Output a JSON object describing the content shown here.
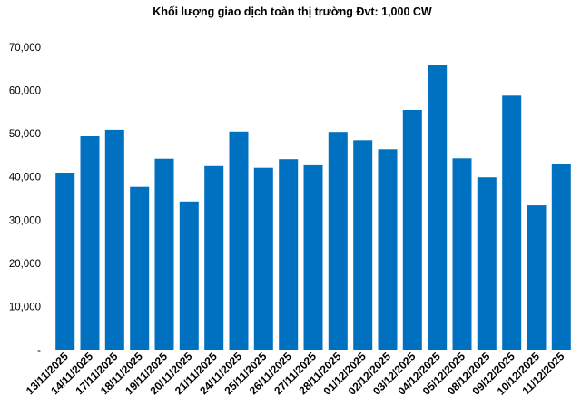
{
  "chart_data": {
    "type": "bar",
    "title": "Khối lượng giao dịch toàn thị trường Đvt: 1,000 CW",
    "categories": [
      "13/11/2025",
      "14/11/2025",
      "17/11/2025",
      "18/11/2025",
      "19/11/2025",
      "20/11/2025",
      "21/11/2025",
      "24/11/2025",
      "25/11/2025",
      "26/11/2025",
      "27/11/2025",
      "28/11/2025",
      "01/12/2025",
      "02/12/2025",
      "03/12/2025",
      "04/12/2025",
      "05/12/2025",
      "08/12/2025",
      "09/12/2025",
      "10/12/2025",
      "11/12/2025"
    ],
    "values": [
      41000,
      49400,
      50900,
      37700,
      44200,
      34300,
      42500,
      50500,
      42100,
      44100,
      42700,
      50400,
      48500,
      46400,
      55500,
      66000,
      44300,
      39900,
      58800,
      33400,
      42900
    ],
    "ylim": [
      0,
      70000
    ],
    "yticks": [
      0,
      10000,
      20000,
      30000,
      40000,
      50000,
      60000,
      70000
    ],
    "ytick_labels": [
      "-",
      "10,000",
      "20,000",
      "30,000",
      "40,000",
      "50,000",
      "60,000",
      "70,000"
    ],
    "grid": false,
    "legend": "none",
    "bar_color": "#0070C0"
  }
}
